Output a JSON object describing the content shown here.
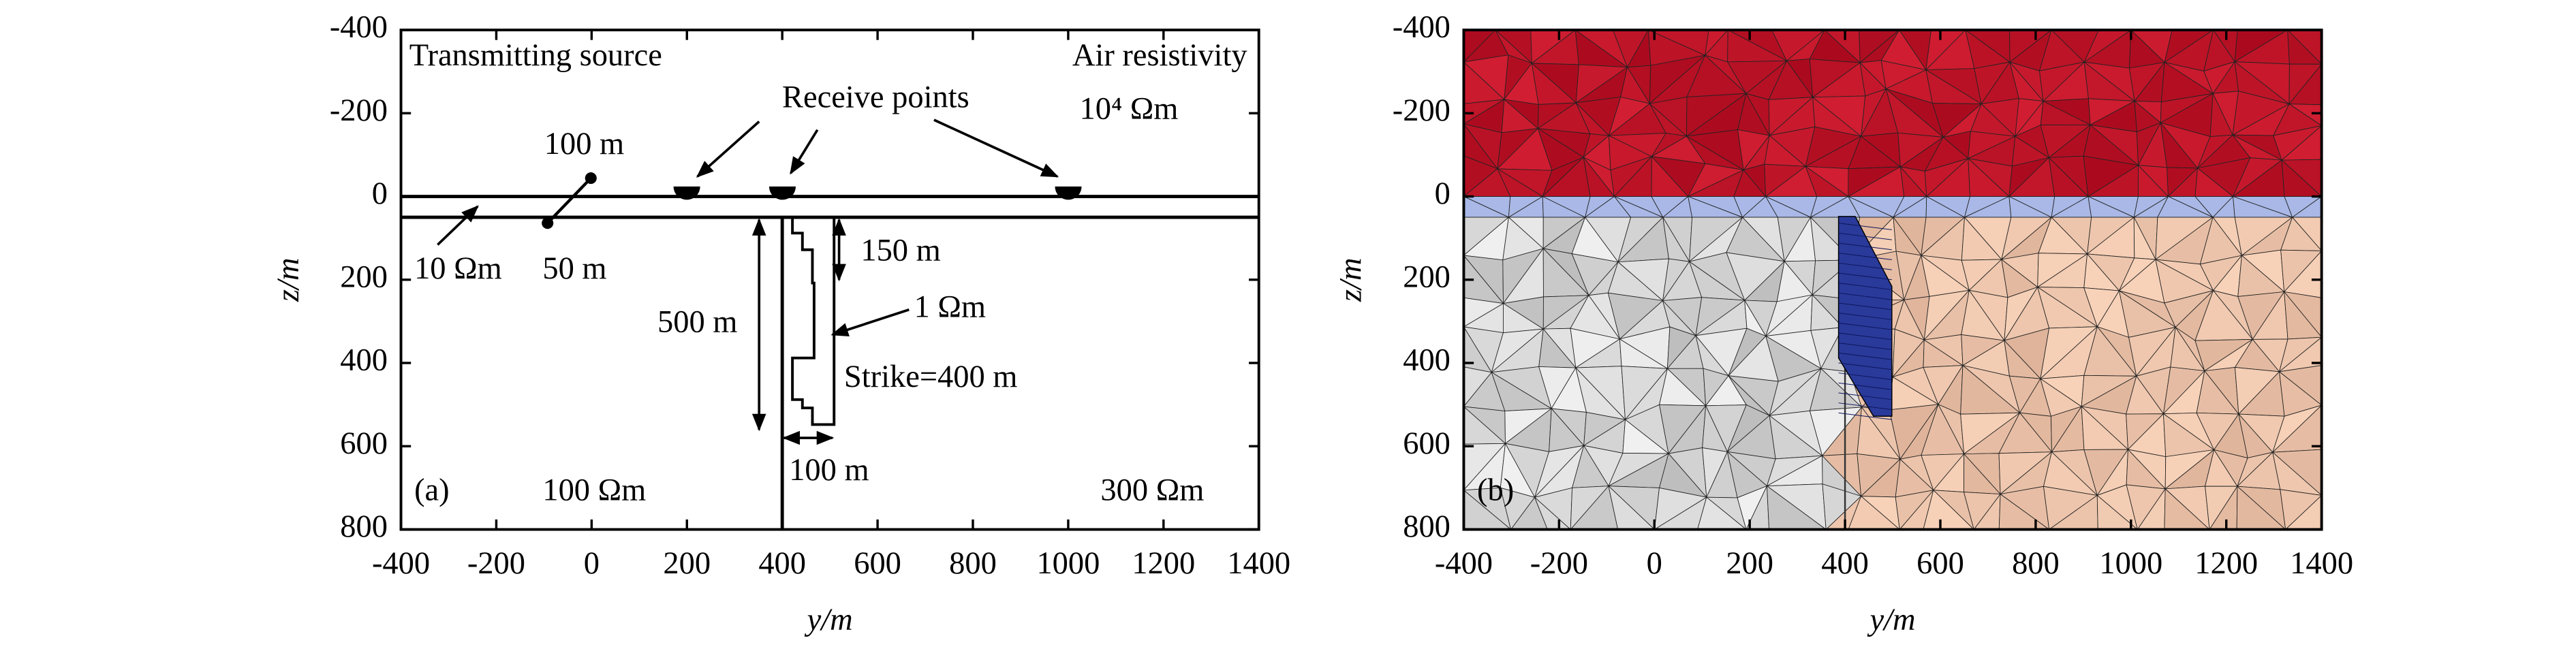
{
  "chart_data": [
    {
      "type": "model",
      "xlabel": "y/m",
      "ylabel": "z/m",
      "xlim": [
        -400,
        1400
      ],
      "ylim": [
        -400,
        800
      ],
      "y_inverted": true,
      "xticks": [
        -400,
        -200,
        0,
        200,
        400,
        600,
        800,
        1000,
        1200,
        1400
      ],
      "yticks": [
        -400,
        -200,
        0,
        200,
        400,
        600,
        800
      ],
      "panel_label": "(a)",
      "annotations": [
        "Transmitting source",
        "Air resistivity",
        "10⁴ Ωm",
        "Receive points",
        "100 m",
        "10 Ωm",
        "50 m",
        "500 m",
        "150 m",
        "1 Ωm",
        "Strike=400 m",
        "100 m",
        "100 Ωm",
        "300 Ωm"
      ]
    },
    {
      "type": "mesh",
      "xlabel": "y/m",
      "ylabel": "z/m",
      "xlim": [
        -400,
        1400
      ],
      "ylim": [
        -400,
        800
      ],
      "y_inverted": true,
      "xticks": [
        -400,
        -200,
        0,
        200,
        400,
        600,
        800,
        1000,
        1200,
        1400
      ],
      "yticks": [
        -400,
        -200,
        0,
        200,
        400,
        600,
        800
      ],
      "panel_label": "(b)"
    }
  ]
}
